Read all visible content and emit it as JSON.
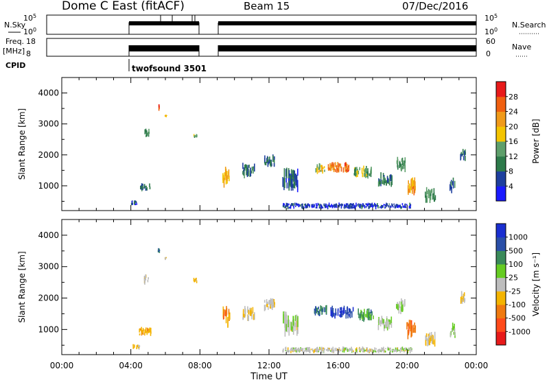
{
  "header": {
    "station": "Dome C East (fitACF)",
    "beam": "Beam 15",
    "date": "07/Dec/2016"
  },
  "top_panels": {
    "nsky": {
      "label": "N.Sky",
      "tick_top": "10^5",
      "tick_bottom": "10^0"
    },
    "nsearch": {
      "label": "N.Search",
      "tick_top": "10^5",
      "tick_bottom": "10^0"
    },
    "freq": {
      "label_line1": "Freq.",
      "label_line2": "[MHz]",
      "tick_top": "18",
      "tick_bottom": "8"
    },
    "nave": {
      "label": "Nave",
      "tick_top": "60",
      "tick_bottom": "0"
    },
    "cpid": {
      "label": "CPID",
      "program": "twofsound 3501"
    }
  },
  "x_axis": {
    "label": "Time UT",
    "ticks": [
      "00:00",
      "04:00",
      "08:00",
      "12:00",
      "16:00",
      "20:00",
      "00:00"
    ]
  },
  "colors": {
    "power": [
      "#1a1aff",
      "#1e3f9e",
      "#2d7a4a",
      "#5e9f6b",
      "#f4c400",
      "#f09a1a",
      "#f06010",
      "#e81a1a"
    ],
    "velocity": [
      "#e81a1a",
      "#ff4a1a",
      "#f07a10",
      "#f4b400",
      "#bdbdbd",
      "#66cc22",
      "#3a8a5a",
      "#2a4fa8",
      "#1a2fd0"
    ]
  },
  "chart_data": [
    {
      "type": "heatmap",
      "title": "",
      "xlabel": "",
      "ylabel": "Slant Range [km]",
      "xlim": [
        0,
        24
      ],
      "ylim": [
        200,
        4500
      ],
      "yticks": [
        "1000",
        "2000",
        "3000",
        "4000"
      ],
      "colorbar": {
        "label": "Power [dB]",
        "ticks": [
          "4",
          "8",
          "12",
          "16",
          "20",
          "24",
          "28"
        ],
        "range": [
          0,
          32
        ]
      },
      "blobs": [
        {
          "t": 4.8,
          "r": 960,
          "dt": 0.6,
          "dr": 160,
          "v": 9
        },
        {
          "t": 4.2,
          "r": 450,
          "dt": 0.4,
          "dr": 110,
          "v": 7
        },
        {
          "t": 5.6,
          "r": 3530,
          "dt": 0.1,
          "dr": 120,
          "v": 26
        },
        {
          "t": 6.0,
          "r": 3270,
          "dt": 0.1,
          "dr": 80,
          "v": 20
        },
        {
          "t": 4.9,
          "r": 2700,
          "dt": 0.3,
          "dr": 200,
          "v": 12
        },
        {
          "t": 7.7,
          "r": 2600,
          "dt": 0.2,
          "dr": 130,
          "v": 14
        },
        {
          "t": 9.5,
          "r": 1300,
          "dt": 0.4,
          "dr": 400,
          "v": 20
        },
        {
          "t": 10.8,
          "r": 1500,
          "dt": 0.7,
          "dr": 300,
          "v": 10
        },
        {
          "t": 12.0,
          "r": 1800,
          "dt": 0.6,
          "dr": 250,
          "v": 9
        },
        {
          "t": 13.2,
          "r": 1200,
          "dt": 0.9,
          "dr": 500,
          "v": 7
        },
        {
          "t": 14.9,
          "r": 1550,
          "dt": 0.6,
          "dr": 200,
          "v": 18
        },
        {
          "t": 16.0,
          "r": 1600,
          "dt": 1.2,
          "dr": 220,
          "v": 25
        },
        {
          "t": 17.4,
          "r": 1450,
          "dt": 1.0,
          "dr": 250,
          "v": 14
        },
        {
          "t": 18.7,
          "r": 1200,
          "dt": 0.8,
          "dr": 300,
          "v": 10
        },
        {
          "t": 19.6,
          "r": 1700,
          "dt": 0.5,
          "dr": 300,
          "v": 12
        },
        {
          "t": 20.2,
          "r": 1000,
          "dt": 0.5,
          "dr": 400,
          "v": 22
        },
        {
          "t": 21.3,
          "r": 700,
          "dt": 0.6,
          "dr": 300,
          "v": 12
        },
        {
          "t": 22.6,
          "r": 1000,
          "dt": 0.3,
          "dr": 300,
          "v": 9
        },
        {
          "t": 23.2,
          "r": 2000,
          "dt": 0.3,
          "dr": 250,
          "v": 10
        },
        {
          "t": 16.5,
          "r": 350,
          "dt": 7.5,
          "dr": 120,
          "v": 5
        }
      ]
    },
    {
      "type": "heatmap",
      "title": "",
      "xlabel": "Time UT",
      "ylabel": "Slant Range [km]",
      "xlim": [
        0,
        24
      ],
      "ylim": [
        200,
        4500
      ],
      "yticks": [
        "1000",
        "2000",
        "3000",
        "4000"
      ],
      "colorbar": {
        "label": "Velocity [m s⁻¹]",
        "ticks": [
          "1000",
          "500",
          "100",
          "25",
          "-25",
          "-100",
          "-500",
          "-1000"
        ],
        "range": [
          -1200,
          1200
        ]
      },
      "blobs": [
        {
          "t": 4.8,
          "r": 930,
          "dt": 0.7,
          "dr": 180,
          "v": -300
        },
        {
          "t": 4.3,
          "r": 450,
          "dt": 0.4,
          "dr": 110,
          "v": -150
        },
        {
          "t": 5.6,
          "r": 3530,
          "dt": 0.1,
          "dr": 120,
          "v": 600
        },
        {
          "t": 6.0,
          "r": 3270,
          "dt": 0.1,
          "dr": 80,
          "v": -100
        },
        {
          "t": 4.9,
          "r": 2600,
          "dt": 0.3,
          "dr": 200,
          "v": -80
        },
        {
          "t": 7.7,
          "r": 2550,
          "dt": 0.2,
          "dr": 130,
          "v": -200
        },
        {
          "t": 9.5,
          "r": 1400,
          "dt": 0.4,
          "dr": 400,
          "v": -500
        },
        {
          "t": 10.8,
          "r": 1500,
          "dt": 0.7,
          "dr": 300,
          "v": -150
        },
        {
          "t": 12.0,
          "r": 1800,
          "dt": 0.6,
          "dr": 250,
          "v": -60
        },
        {
          "t": 13.2,
          "r": 1200,
          "dt": 0.9,
          "dr": 500,
          "v": 60
        },
        {
          "t": 15.0,
          "r": 1600,
          "dt": 0.8,
          "dr": 220,
          "v": 700
        },
        {
          "t": 16.2,
          "r": 1550,
          "dt": 1.3,
          "dr": 250,
          "v": 900
        },
        {
          "t": 17.6,
          "r": 1450,
          "dt": 1.0,
          "dr": 250,
          "v": 500
        },
        {
          "t": 18.7,
          "r": 1200,
          "dt": 0.8,
          "dr": 300,
          "v": 80
        },
        {
          "t": 19.6,
          "r": 1750,
          "dt": 0.5,
          "dr": 300,
          "v": 200
        },
        {
          "t": 20.2,
          "r": 1000,
          "dt": 0.5,
          "dr": 400,
          "v": -600
        },
        {
          "t": 21.3,
          "r": 700,
          "dt": 0.6,
          "dr": 300,
          "v": -150
        },
        {
          "t": 22.6,
          "r": 950,
          "dt": 0.3,
          "dr": 300,
          "v": 100
        },
        {
          "t": 23.2,
          "r": 2000,
          "dt": 0.3,
          "dr": 250,
          "v": -60
        },
        {
          "t": 16.5,
          "r": 350,
          "dt": 7.5,
          "dr": 120,
          "v": 15
        }
      ]
    }
  ]
}
